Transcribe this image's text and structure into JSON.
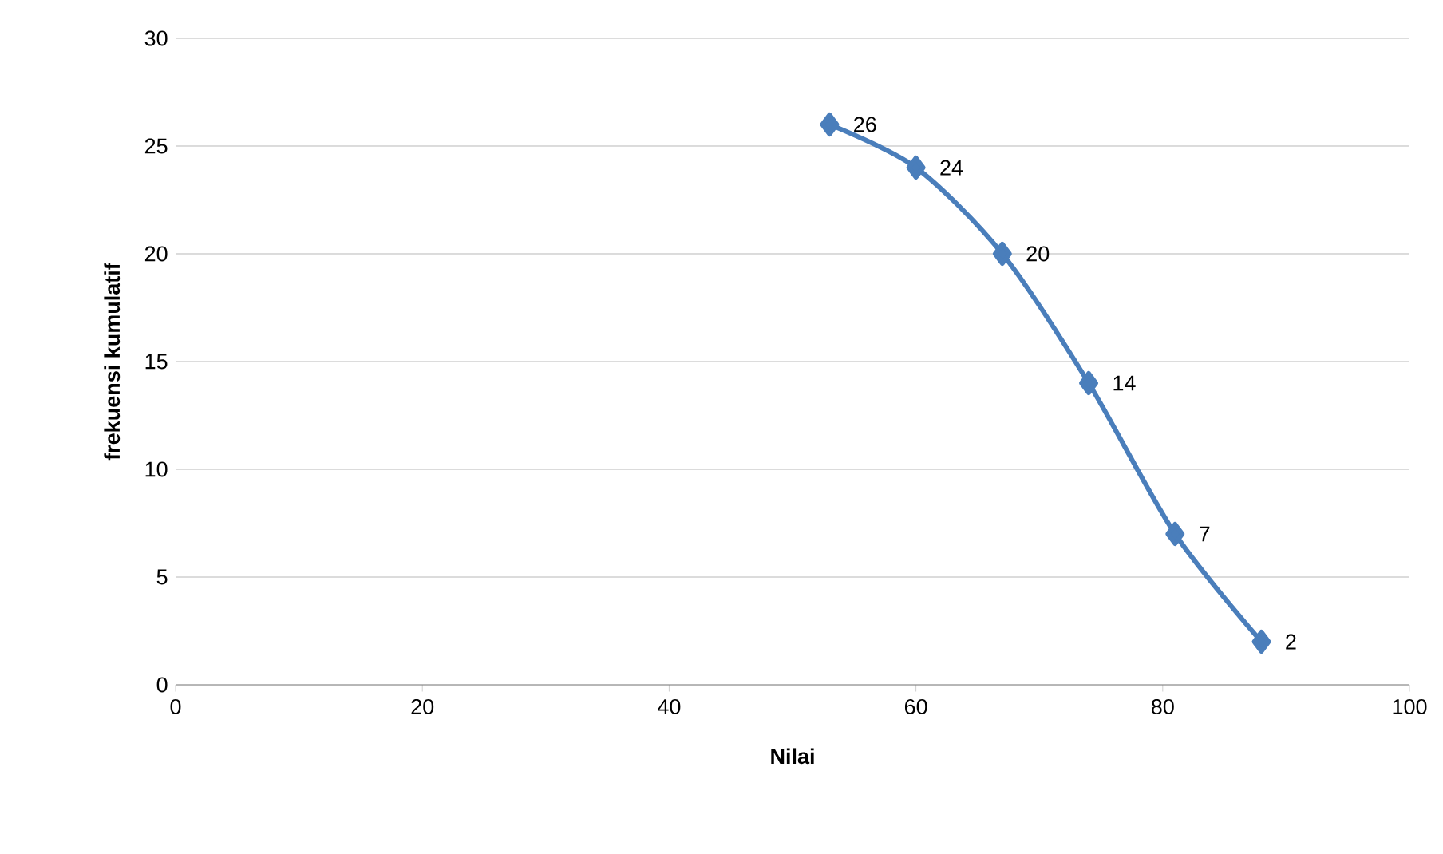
{
  "chart_data": {
    "type": "line",
    "xlabel": "Nilai",
    "ylabel": "frekuensi kumulatif",
    "x": [
      53,
      60,
      67,
      74,
      81,
      88
    ],
    "values": [
      26,
      24,
      20,
      14,
      7,
      2
    ],
    "color": "#4a7ebb",
    "marker": "diamond",
    "line_style": "solid",
    "data_labels": true,
    "grid": "y",
    "xlim": [
      0,
      100
    ],
    "xticks": [
      0,
      20,
      40,
      60,
      80,
      100
    ],
    "ylim": [
      0,
      30
    ],
    "yticks": [
      0,
      5,
      10,
      15,
      20,
      25,
      30
    ]
  }
}
